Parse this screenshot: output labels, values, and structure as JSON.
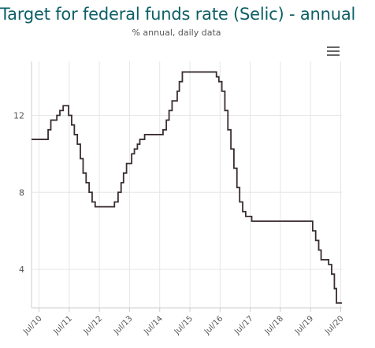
{
  "chart_data": {
    "type": "line",
    "title": "Target for federal funds rate (Selic) - annual",
    "subtitle": "% annual, daily data",
    "xlabel": "",
    "ylabel": "",
    "x_range": [
      2010.25,
      2020.54
    ],
    "ylim": [
      2,
      14.8
    ],
    "y_ticks": [
      "4",
      "8",
      "12"
    ],
    "x_ticks": [
      {
        "label": "Jul/10",
        "t": 2010.5
      },
      {
        "label": "Jul/11",
        "t": 2011.5
      },
      {
        "label": "Jul/12",
        "t": 2012.5
      },
      {
        "label": "Jul/13",
        "t": 2013.5
      },
      {
        "label": "Jul/14",
        "t": 2014.5
      },
      {
        "label": "Jul/15",
        "t": 2015.5
      },
      {
        "label": "Jul/16",
        "t": 2016.5
      },
      {
        "label": "Jul/17",
        "t": 2017.5
      },
      {
        "label": "Jul/18",
        "t": 2018.5
      },
      {
        "label": "Jul/19",
        "t": 2019.5
      },
      {
        "label": "Jul/20",
        "t": 2020.5
      }
    ],
    "grid": true,
    "series": [
      {
        "name": "",
        "color": "#3a2d32",
        "step": true,
        "x": [
          2010.25,
          2010.71,
          2010.8,
          2010.89,
          2011.0,
          2011.09,
          2011.19,
          2011.3,
          2011.4,
          2011.48,
          2011.58,
          2011.67,
          2011.77,
          2011.87,
          2011.96,
          2012.06,
          2012.16,
          2012.26,
          2012.36,
          2012.45,
          2012.56,
          2012.66,
          2012.76,
          2013.0,
          2013.12,
          2013.22,
          2013.3,
          2013.4,
          2013.48,
          2013.57,
          2013.66,
          2013.76,
          2013.84,
          2013.93,
          2014.0,
          2014.09,
          2014.18,
          2014.37,
          2014.51,
          2014.61,
          2014.72,
          2014.81,
          2014.91,
          2015.0,
          2015.08,
          2015.15,
          2015.25,
          2015.36,
          2015.46,
          2015.5,
          2016.1,
          2016.18,
          2016.31,
          2016.38,
          2016.46,
          2016.56,
          2016.66,
          2016.76,
          2016.86,
          2016.96,
          2017.06,
          2017.15,
          2017.25,
          2017.35,
          2017.45,
          2017.55,
          2017.65,
          2017.75,
          2017.85,
          2017.95,
          2018.05,
          2018.15,
          2018.25,
          2018.4,
          2018.57,
          2018.82,
          2019.0,
          2019.25,
          2019.52,
          2019.57,
          2019.67,
          2019.77,
          2019.85,
          2019.92,
          2020.1,
          2020.2,
          2020.29,
          2020.36,
          2020.44,
          2020.54
        ],
        "y": [
          10.75,
          10.75,
          11.25,
          11.75,
          11.75,
          12.0,
          12.25,
          12.5,
          12.5,
          12.0,
          11.5,
          11.0,
          10.5,
          9.75,
          9.0,
          8.5,
          8.0,
          7.5,
          7.25,
          7.25,
          7.25,
          7.25,
          7.25,
          7.5,
          8.0,
          8.5,
          9.0,
          9.5,
          9.5,
          10.0,
          10.25,
          10.5,
          10.75,
          10.75,
          11.0,
          11.0,
          11.0,
          11.0,
          11.0,
          11.25,
          11.75,
          12.25,
          12.75,
          12.75,
          13.25,
          13.75,
          14.25,
          14.25,
          14.25,
          14.25,
          14.25,
          14.25,
          14.25,
          14.0,
          13.75,
          13.25,
          12.25,
          11.25,
          10.25,
          9.25,
          8.25,
          7.5,
          7.0,
          6.75,
          6.75,
          6.5,
          6.5,
          6.5,
          6.5,
          6.5,
          6.5,
          6.5,
          6.5,
          6.5,
          6.5,
          6.5,
          6.5,
          6.5,
          6.5,
          6.0,
          5.5,
          5.0,
          4.5,
          4.5,
          4.25,
          3.75,
          3.0,
          2.25,
          2.25,
          2.25
        ]
      }
    ]
  },
  "ui": {
    "menu_icon": "hamburger-menu-icon"
  }
}
